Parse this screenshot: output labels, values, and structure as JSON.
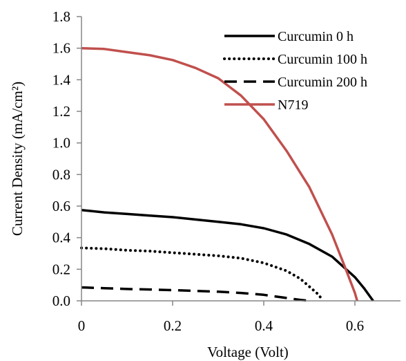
{
  "chart_data": {
    "type": "line",
    "title": "",
    "xlabel": "Voltage (Volt)",
    "ylabel": "Current Density (mA/cm²)",
    "xlim": [
      0,
      0.7
    ],
    "ylim": [
      0,
      1.8
    ],
    "xticks": [
      0,
      0.2,
      0.4,
      0.6
    ],
    "xtick_labels": [
      "0",
      "0.2",
      "0.4",
      "0.6"
    ],
    "yticks": [
      0,
      0.2,
      0.4,
      0.6,
      0.8,
      1.0,
      1.2,
      1.4,
      1.6,
      1.8
    ],
    "ytick_labels": [
      "0.0",
      "0.2",
      "0.4",
      "0.6",
      "0.8",
      "1.0",
      "1.2",
      "1.4",
      "1.6",
      "1.8"
    ],
    "grid": false,
    "legend_position": "top-right",
    "series": [
      {
        "name": "Curcumin 0 h",
        "style": "solid",
        "color": "#000000",
        "x": [
          0,
          0.05,
          0.1,
          0.15,
          0.2,
          0.25,
          0.3,
          0.35,
          0.4,
          0.45,
          0.5,
          0.55,
          0.6,
          0.62,
          0.63,
          0.64
        ],
        "y": [
          0.575,
          0.56,
          0.55,
          0.54,
          0.53,
          0.515,
          0.5,
          0.485,
          0.46,
          0.42,
          0.36,
          0.28,
          0.15,
          0.08,
          0.04,
          0.0
        ]
      },
      {
        "name": "Curcumin 100 h",
        "style": "dotted",
        "color": "#000000",
        "x": [
          0,
          0.05,
          0.1,
          0.15,
          0.2,
          0.25,
          0.3,
          0.35,
          0.4,
          0.45,
          0.48,
          0.5,
          0.52,
          0.53
        ],
        "y": [
          0.335,
          0.33,
          0.32,
          0.315,
          0.305,
          0.295,
          0.285,
          0.27,
          0.24,
          0.19,
          0.14,
          0.09,
          0.04,
          0.0
        ]
      },
      {
        "name": "Curcumin 200 h",
        "style": "dashed",
        "color": "#000000",
        "x": [
          0,
          0.05,
          0.1,
          0.15,
          0.2,
          0.25,
          0.3,
          0.35,
          0.4,
          0.45,
          0.48,
          0.5
        ],
        "y": [
          0.085,
          0.08,
          0.075,
          0.072,
          0.068,
          0.063,
          0.058,
          0.05,
          0.038,
          0.018,
          0.006,
          0.0
        ]
      },
      {
        "name": "N719",
        "style": "solid",
        "color": "#c0504d",
        "x": [
          0,
          0.05,
          0.1,
          0.15,
          0.2,
          0.25,
          0.3,
          0.35,
          0.4,
          0.45,
          0.5,
          0.55,
          0.58,
          0.6,
          0.605
        ],
        "y": [
          1.6,
          1.595,
          1.575,
          1.555,
          1.525,
          1.475,
          1.41,
          1.3,
          1.15,
          0.95,
          0.72,
          0.42,
          0.2,
          0.05,
          0.0
        ]
      }
    ]
  }
}
